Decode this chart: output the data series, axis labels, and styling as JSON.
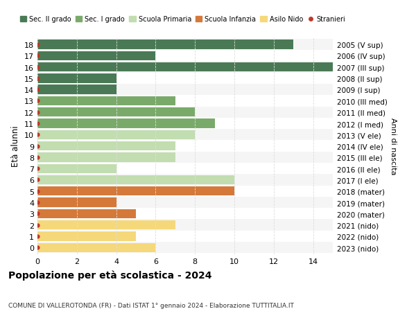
{
  "ages": [
    18,
    17,
    16,
    15,
    14,
    13,
    12,
    11,
    10,
    9,
    8,
    7,
    6,
    5,
    4,
    3,
    2,
    1,
    0
  ],
  "right_labels": [
    "2005 (V sup)",
    "2006 (IV sup)",
    "2007 (III sup)",
    "2008 (II sup)",
    "2009 (I sup)",
    "2010 (III med)",
    "2011 (II med)",
    "2012 (I med)",
    "2013 (V ele)",
    "2014 (IV ele)",
    "2015 (III ele)",
    "2016 (II ele)",
    "2017 (I ele)",
    "2018 (mater)",
    "2019 (mater)",
    "2020 (mater)",
    "2021 (nido)",
    "2022 (nido)",
    "2023 (nido)"
  ],
  "values": [
    13,
    6,
    15,
    4,
    4,
    7,
    8,
    9,
    8,
    7,
    7,
    4,
    10,
    10,
    4,
    5,
    7,
    5,
    6
  ],
  "colors": [
    "#4a7a55",
    "#4a7a55",
    "#4a7a55",
    "#4a7a55",
    "#4a7a55",
    "#7aaa6a",
    "#7aaa6a",
    "#7aaa6a",
    "#c2ddb0",
    "#c2ddb0",
    "#c2ddb0",
    "#c2ddb0",
    "#c2ddb0",
    "#d4793a",
    "#d4793a",
    "#d4793a",
    "#f5d87a",
    "#f5d87a",
    "#f5d87a"
  ],
  "legend_labels": [
    "Sec. II grado",
    "Sec. I grado",
    "Scuola Primaria",
    "Scuola Infanzia",
    "Asilo Nido",
    "Stranieri"
  ],
  "legend_colors": [
    "#4a7a55",
    "#7aaa6a",
    "#c2ddb0",
    "#d4793a",
    "#f5d87a",
    "#c0392b"
  ],
  "ylabel": "Età alunni",
  "right_ylabel": "Anni di nascita",
  "title": "Popolazione per età scolastica - 2024",
  "subtitle": "COMUNE DI VALLEROTONDA (FR) - Dati ISTAT 1° gennaio 2024 - Elaborazione TUTTITALIA.IT",
  "xlim": [
    0,
    15
  ],
  "xticks": [
    0,
    2,
    4,
    6,
    8,
    10,
    12,
    14
  ],
  "bg_color": "#ffffff",
  "row_bg_odd": "#f5f5f5",
  "grid_color": "#dddddd",
  "stranieri_color": "#c0392b",
  "bar_height": 0.82
}
